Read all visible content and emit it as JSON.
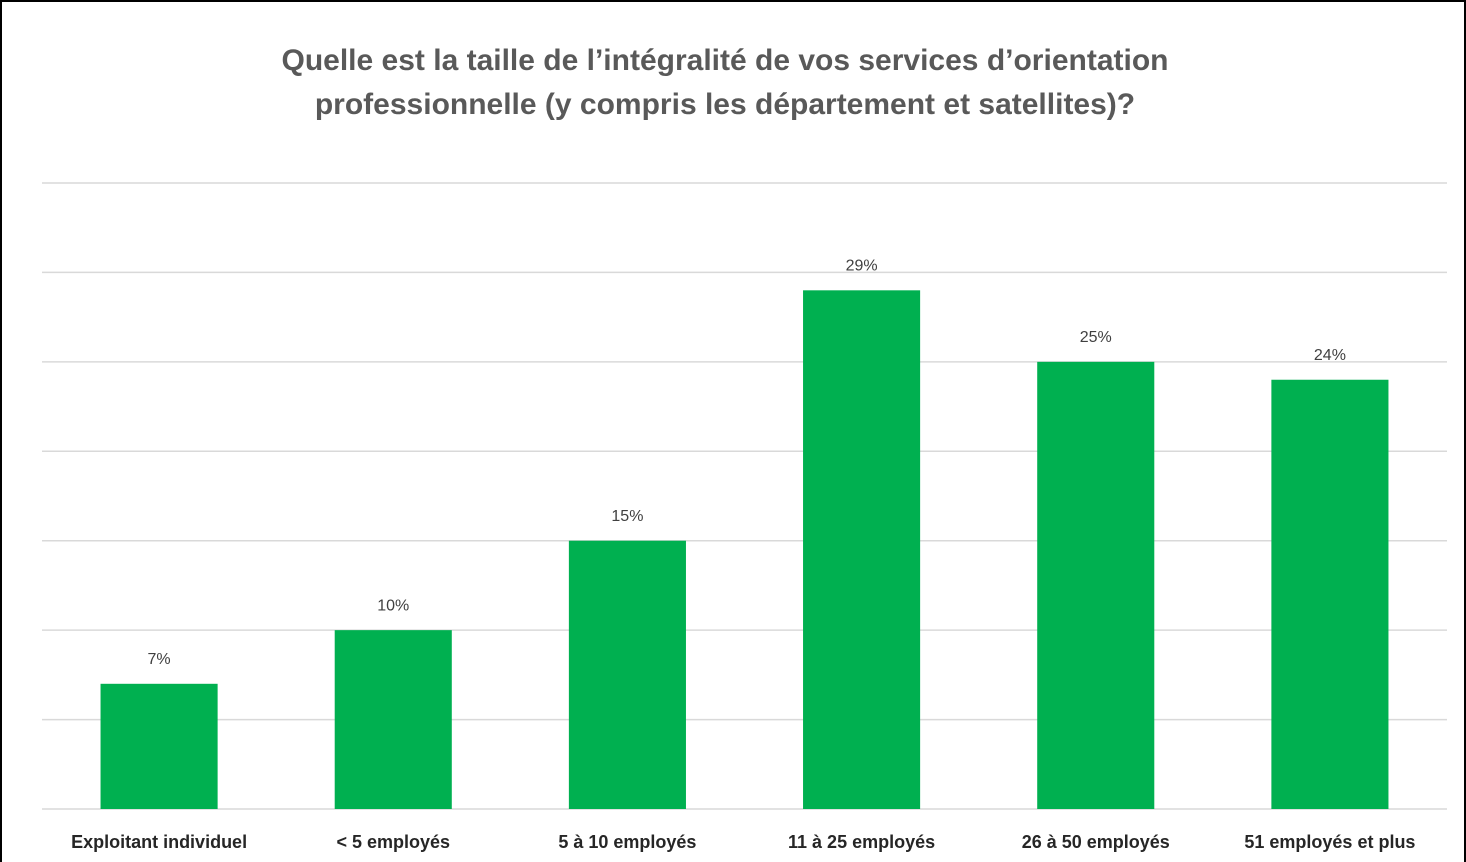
{
  "chart_data": {
    "type": "bar",
    "title": [
      "Quelle est la taille de l’intégralité de vos services d’orientation",
      "professionnelle (y compris les département et satellites)?"
    ],
    "categories": [
      "Exploitant individuel",
      "< 5 employés",
      "5 à 10 employés",
      "11 à 25 employés",
      "26 à 50 employés",
      "51 employés et plus"
    ],
    "values": [
      7,
      10,
      15,
      29,
      25,
      24
    ],
    "value_labels": [
      "7%",
      "10%",
      "15%",
      "29%",
      "25%",
      "24%"
    ],
    "color": "#00b050",
    "ylim": [
      0,
      35
    ],
    "yticks": [
      0,
      5,
      10,
      15,
      20,
      25,
      30,
      35
    ],
    "grid": true
  }
}
